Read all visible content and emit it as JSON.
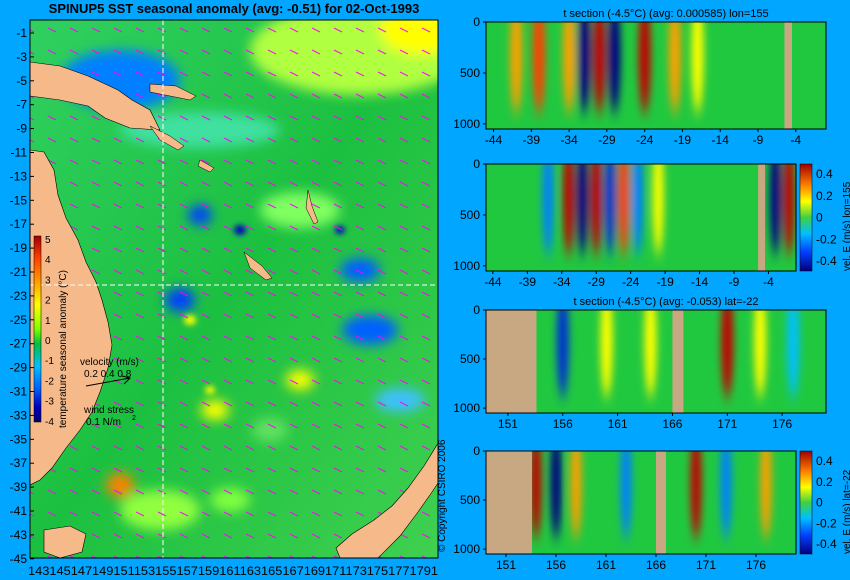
{
  "map": {
    "title": "SPINUP5 SST seasonal anomaly (avg: -0.51) for 02-Oct-1993",
    "lat_ticks": [
      "-1",
      "-3",
      "-5",
      "-7",
      "-9",
      "-11",
      "-13",
      "-15",
      "-17",
      "-19",
      "-21",
      "-23",
      "-25",
      "-27",
      "-29",
      "-31",
      "-33",
      "-35",
      "-37",
      "-39",
      "-41",
      "-43",
      "-45"
    ],
    "lon_ticks_text": "1431451471491511531551571591611631651671691711731751771791",
    "colorbar": {
      "label": "temperature seasonal anomaly (°C)",
      "ticks": [
        "5",
        "4",
        "3",
        "2",
        "1",
        "0",
        "-1",
        "-2",
        "-3",
        "-4"
      ],
      "stops": [
        "#a00000",
        "#ff4000",
        "#ffa000",
        "#ffff00",
        "#80ff00",
        "#00c040",
        "#00c0ff",
        "#0060ff",
        "#0000c0",
        "#000070"
      ]
    },
    "velocity_label": "velocity (m/s)",
    "velocity_scale": "0.2 0.4 0.8",
    "wind_label": "wind stress",
    "wind_scale": "0.1 N/m",
    "copyright": "© Copyright CSIRO 2006",
    "colors": {
      "land": "#f5b98a",
      "ocean": "#20c840",
      "arrows": "#ff00ff",
      "guide": "#ffffff"
    }
  },
  "sections": [
    {
      "title": "t section (-4.5°C) (avg: 0.000585) lon=155",
      "y_ticks": [
        "0",
        "500",
        "1000"
      ],
      "x_ticks": [
        "-44",
        "-39",
        "-34",
        "-29",
        "-24",
        "-19",
        "-14",
        "-9",
        "-4"
      ],
      "bar_label": "",
      "bar_ticks": []
    },
    {
      "title": "",
      "y_ticks": [
        "0",
        "500",
        "1000"
      ],
      "x_ticks": [
        "-44",
        "-39",
        "-34",
        "-29",
        "-24",
        "-19",
        "-14",
        "-9",
        "-4"
      ],
      "bar_label": "vel. E (m/s) lon=155",
      "bar_ticks": [
        "0.4",
        "0.2",
        "0",
        "-0.2",
        "-0.4"
      ]
    },
    {
      "title": "t section (-4.5°C) (avg: -0.053) lat=-22",
      "y_ticks": [
        "0",
        "500",
        "1000"
      ],
      "x_ticks": [
        "151",
        "156",
        "161",
        "166",
        "171",
        "176"
      ],
      "bar_label": "",
      "bar_ticks": []
    },
    {
      "title": "",
      "y_ticks": [
        "0",
        "500",
        "1000"
      ],
      "x_ticks": [
        "151",
        "156",
        "161",
        "166",
        "171",
        "176"
      ],
      "bar_label": "vel. E (m/s) lat=-22",
      "bar_ticks": [
        "0.4",
        "0.2",
        "0",
        "-0.2",
        "-0.4"
      ]
    }
  ],
  "chart_data": [
    {
      "type": "heatmap",
      "title": "SPINUP5 SST seasonal anomaly (avg: -0.51) for 02-Oct-1993",
      "xlabel": "",
      "ylabel": "",
      "x_range": [
        143,
        180
      ],
      "y_range": [
        -45,
        0
      ],
      "colorbar_range": [
        -4,
        5
      ],
      "colorbar_label": "temperature seasonal anomaly (°C)",
      "features": {
        "top_left_anomaly": "negative (blue)",
        "north_east": "positive (yellow)",
        "dominant": "near 0 (green)"
      }
    },
    {
      "type": "heatmap",
      "title": "t section (-4.5°C) (avg: 0.000585) lon=155",
      "x_range": [
        -45,
        0
      ],
      "y_range": [
        0,
        1050
      ],
      "cells": [
        {
          "x": -41,
          "level": "0.5"
        },
        {
          "x": -38,
          "level": "0.8"
        },
        {
          "x": -34,
          "level": "0.6"
        },
        {
          "x": -32,
          "level": "-0.9"
        },
        {
          "x": -30,
          "level": "1.0"
        },
        {
          "x": -28,
          "level": "-1.0"
        },
        {
          "x": -24,
          "level": "1.0"
        },
        {
          "x": -20,
          "level": "0.5"
        },
        {
          "x": -17,
          "level": "0.4"
        }
      ]
    },
    {
      "type": "heatmap",
      "title": "",
      "x_range": [
        -45,
        0
      ],
      "y_range": [
        0,
        1050
      ],
      "colorbar_range": [
        -0.4,
        0.4
      ],
      "colorbar_label": "vel. E (m/s) lon=155",
      "cells": [
        {
          "x": -36,
          "level": "-0.6"
        },
        {
          "x": -33,
          "level": "1.0"
        },
        {
          "x": -31,
          "level": "-1.0"
        },
        {
          "x": -29,
          "level": "1.0"
        },
        {
          "x": -27,
          "level": "-0.8"
        },
        {
          "x": -25,
          "level": "0.7"
        },
        {
          "x": -23,
          "level": "-0.6"
        },
        {
          "x": -20,
          "level": "0.4"
        },
        {
          "x": -3,
          "level": "-0.9"
        },
        {
          "x": -1,
          "level": "0.9"
        }
      ]
    },
    {
      "type": "heatmap",
      "title": "t section (-4.5°C) (avg: -0.053) lat=-22",
      "x_range": [
        149,
        180
      ],
      "y_range": [
        0,
        1050
      ],
      "cells": [
        {
          "x": 156,
          "level": "-0.8"
        },
        {
          "x": 160,
          "level": "0.4"
        },
        {
          "x": 164,
          "level": "0.3"
        },
        {
          "x": 171,
          "level": "1.0"
        },
        {
          "x": 174,
          "level": "0.4"
        },
        {
          "x": 177,
          "level": "-0.4"
        }
      ]
    },
    {
      "type": "heatmap",
      "title": "",
      "x_range": [
        149,
        180
      ],
      "y_range": [
        0,
        1050
      ],
      "colorbar_range": [
        -0.4,
        0.4
      ],
      "colorbar_label": "vel. E (m/s) lat=-22",
      "cells": [
        {
          "x": 154,
          "level": "0.9"
        },
        {
          "x": 156,
          "level": "-1.0"
        },
        {
          "x": 158,
          "level": "0.6"
        },
        {
          "x": 163,
          "level": "-0.5"
        },
        {
          "x": 170,
          "level": "1.0"
        },
        {
          "x": 173,
          "level": "-0.6"
        },
        {
          "x": 177,
          "level": "0.5"
        }
      ]
    }
  ]
}
